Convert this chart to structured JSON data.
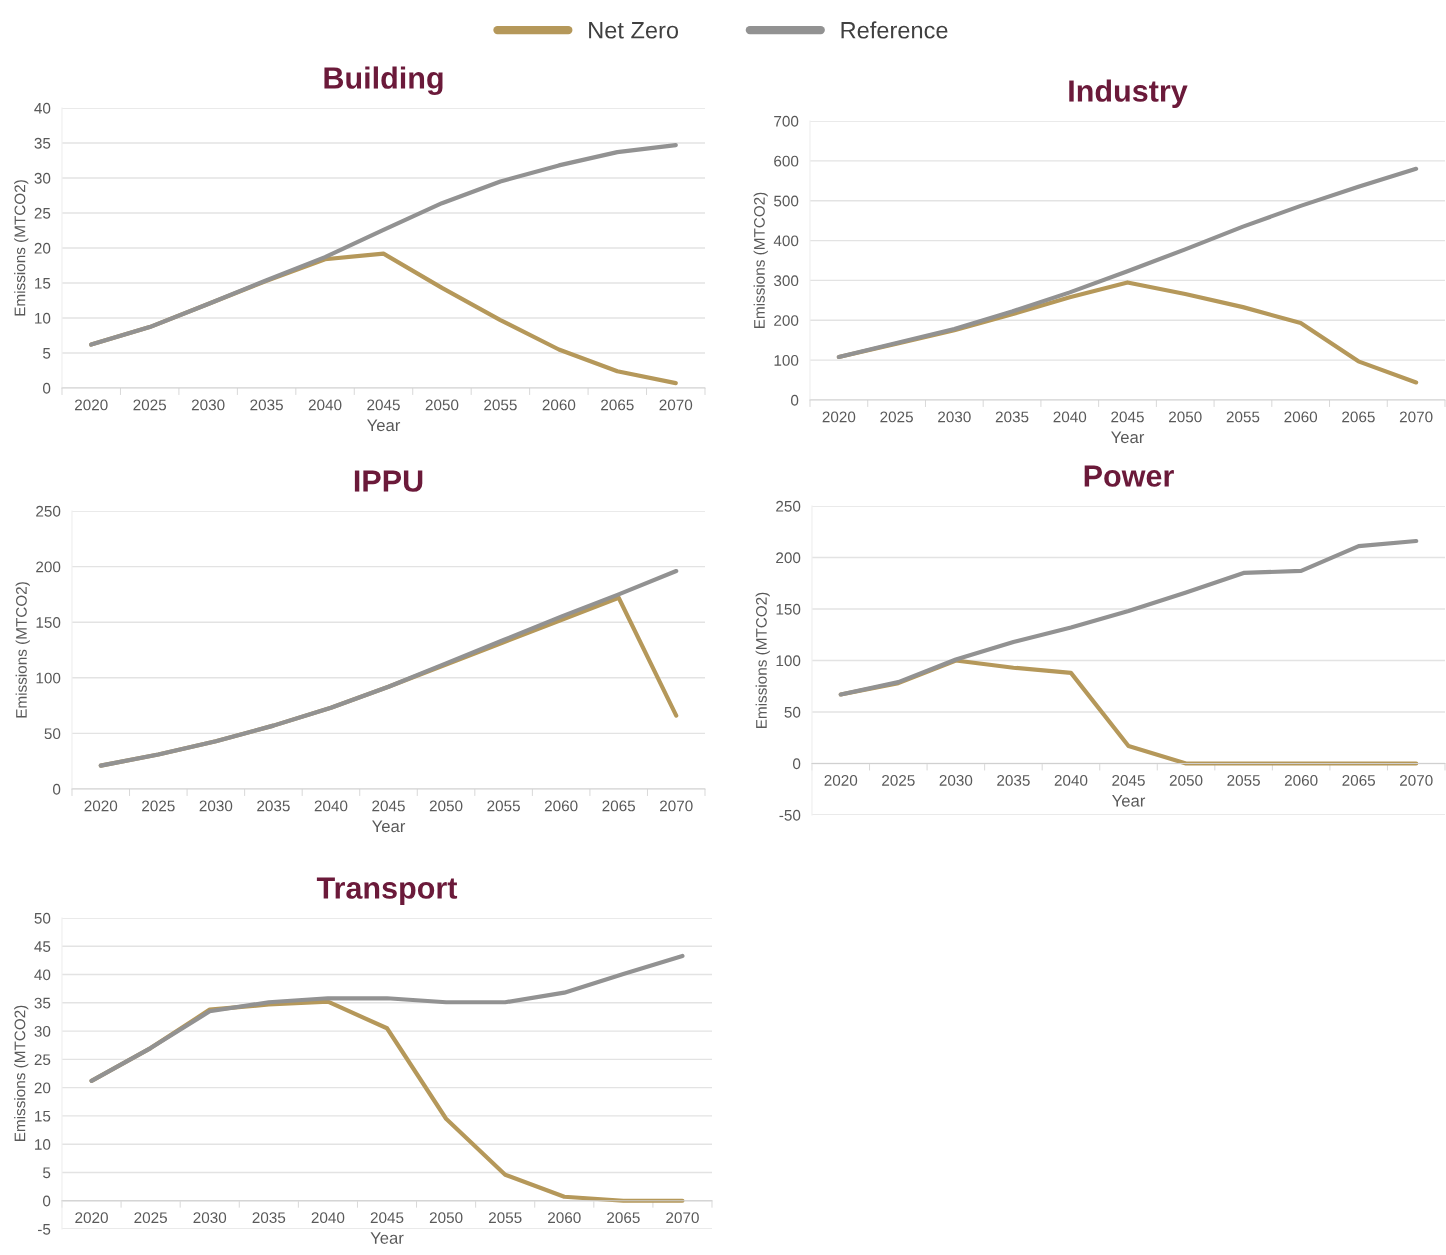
{
  "chart_data": [
    {
      "type": "line",
      "title": "Building",
      "xlabel": "Year",
      "ylabel": "Emissions (MTCO2)",
      "legend": "top",
      "grid": "y",
      "categories": [
        "2020",
        "2025",
        "2030",
        "2035",
        "2040",
        "2045",
        "2050",
        "2055",
        "2060",
        "2065",
        "2070"
      ],
      "ylim": [
        0,
        40
      ],
      "yticks": [
        0,
        5,
        10,
        15,
        20,
        25,
        30,
        35,
        40
      ],
      "series": [
        {
          "name": "Net Zero",
          "color": "#b5985a",
          "values": [
            6.2,
            8.7,
            12,
            15.3,
            18.4,
            19.2,
            14.3,
            9.7,
            5.5,
            2.4,
            0.7
          ]
        },
        {
          "name": "Reference",
          "color": "#929292",
          "values": [
            6.2,
            8.7,
            12,
            15.4,
            18.7,
            22.6,
            26.4,
            29.5,
            31.8,
            33.7,
            34.7
          ]
        }
      ]
    },
    {
      "type": "line",
      "title": "Industry",
      "xlabel": "Year",
      "ylabel": "Emissions (MTCO2)",
      "grid": "y",
      "categories": [
        "2020",
        "2025",
        "2030",
        "2035",
        "2040",
        "2045",
        "2050",
        "2055",
        "2060",
        "2065",
        "2070"
      ],
      "ylim": [
        0,
        700
      ],
      "yticks": [
        0,
        100,
        200,
        300,
        400,
        500,
        600,
        700
      ],
      "series": [
        {
          "name": "Net Zero",
          "color": "#b5985a",
          "values": [
            108,
            141,
            175,
            215,
            258,
            295,
            266,
            233,
            193,
            97,
            44
          ]
        },
        {
          "name": "Reference",
          "color": "#929292",
          "values": [
            108,
            143,
            178,
            222,
            270,
            323,
            378,
            435,
            487,
            535,
            580
          ]
        }
      ]
    },
    {
      "type": "line",
      "title": "IPPU",
      "xlabel": "Year",
      "ylabel": "Emissions (MTCO2)",
      "grid": "y",
      "categories": [
        "2020",
        "2025",
        "2030",
        "2035",
        "2040",
        "2045",
        "2050",
        "2055",
        "2060",
        "2065",
        "2070"
      ],
      "ylim": [
        0,
        250
      ],
      "yticks": [
        0,
        50,
        100,
        150,
        200,
        250
      ],
      "series": [
        {
          "name": "Net Zero",
          "color": "#b5985a",
          "values": [
            21,
            31,
            43,
            57,
            73,
            92,
            112,
            132,
            152,
            172,
            66
          ]
        },
        {
          "name": "Reference",
          "color": "#929292",
          "values": [
            21,
            31,
            43,
            57,
            73,
            92,
            113,
            134,
            155,
            175,
            196
          ]
        }
      ]
    },
    {
      "type": "line",
      "title": "Power",
      "xlabel": "Year",
      "ylabel": "Emissions (MTCO2)",
      "grid": "y",
      "categories": [
        "2020",
        "2025",
        "2030",
        "2035",
        "2040",
        "2045",
        "2050",
        "2055",
        "2060",
        "2065",
        "2070"
      ],
      "ylim": [
        -50,
        250
      ],
      "yticks": [
        -50,
        0,
        50,
        100,
        150,
        200,
        250
      ],
      "series": [
        {
          "name": "Net Zero",
          "color": "#b5985a",
          "values": [
            67,
            78,
            100,
            93,
            88,
            17,
            0,
            0,
            0,
            0,
            0
          ]
        },
        {
          "name": "Reference",
          "color": "#929292",
          "values": [
            67,
            79,
            101,
            118,
            132,
            148,
            166,
            185,
            187,
            211,
            216
          ]
        }
      ]
    },
    {
      "type": "line",
      "title": "Transport",
      "xlabel": "Year",
      "ylabel": "Emissions (MTCO2)",
      "grid": "y",
      "categories": [
        "2020",
        "2025",
        "2030",
        "2035",
        "2040",
        "2045",
        "2050",
        "2055",
        "2060",
        "2065",
        "2070"
      ],
      "ylim": [
        -5,
        50
      ],
      "yticks": [
        -5,
        0,
        5,
        10,
        15,
        20,
        25,
        30,
        35,
        40,
        45,
        50
      ],
      "series": [
        {
          "name": "Net Zero",
          "color": "#b5985a",
          "values": [
            21.2,
            27,
            33.8,
            34.7,
            35.2,
            30.5,
            14.5,
            4.6,
            0.7,
            0,
            0
          ]
        },
        {
          "name": "Reference",
          "color": "#929292",
          "values": [
            21.2,
            27,
            33.5,
            35.1,
            35.8,
            35.8,
            35.1,
            35.1,
            36.8,
            40.1,
            43.3
          ]
        }
      ]
    }
  ]
}
